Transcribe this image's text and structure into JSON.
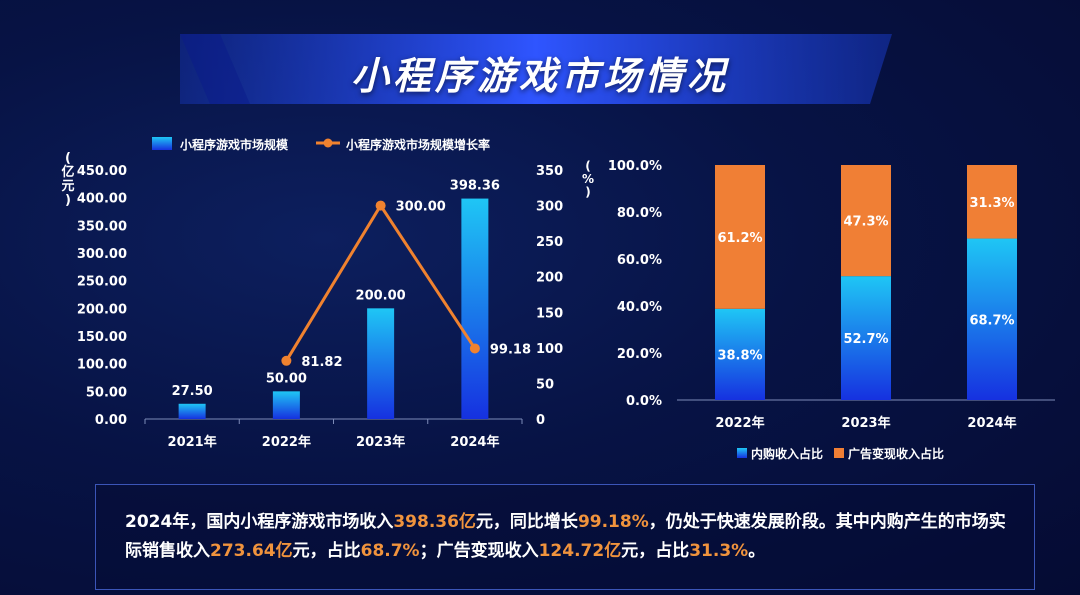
{
  "title": "小程序游戏市场情况",
  "chart_data": [
    {
      "type": "bar",
      "legend": [
        "小程序游戏市场规模",
        "小程序游戏市场规模增长率"
      ],
      "ylabel": "亿元",
      "y2label": "%",
      "categories": [
        "2021年",
        "2022年",
        "2023年",
        "2024年"
      ],
      "ylim": [
        0,
        450
      ],
      "y_ticks": [
        "0.00",
        "50.00",
        "100.00",
        "150.00",
        "200.00",
        "250.00",
        "300.00",
        "350.00",
        "400.00",
        "450.00"
      ],
      "y2lim": [
        0,
        350
      ],
      "y2_ticks": [
        "0",
        "50",
        "100",
        "150",
        "200",
        "250",
        "300",
        "350"
      ],
      "series": [
        {
          "name": "小程序游戏市场规模",
          "kind": "bar",
          "values": [
            27.5,
            50.0,
            200.0,
            398.36
          ],
          "labels": [
            "27.50",
            "50.00",
            "200.00",
            "398.36"
          ]
        },
        {
          "name": "小程序游戏市场规模增长率",
          "kind": "line",
          "axis": "right",
          "values": [
            null,
            81.82,
            300.0,
            99.18
          ],
          "labels": [
            "",
            "81.82",
            "300.00",
            "99.18"
          ]
        }
      ]
    },
    {
      "type": "stacked-bar",
      "categories": [
        "2022年",
        "2023年",
        "2024年"
      ],
      "ylim": [
        0,
        100
      ],
      "y_ticks": [
        "0.0%",
        "20.0%",
        "40.0%",
        "60.0%",
        "80.0%",
        "100.0%"
      ],
      "ylabel": "%",
      "legend": [
        "内购收入占比",
        "广告变现收入占比"
      ],
      "series": [
        {
          "name": "内购收入占比",
          "values": [
            38.8,
            52.7,
            68.7
          ],
          "labels": [
            "38.8%",
            "52.7%",
            "68.7%"
          ]
        },
        {
          "name": "广告变现收入占比",
          "values": [
            61.2,
            47.3,
            31.3
          ],
          "labels": [
            "61.2%",
            "47.3%",
            "31.3%"
          ]
        }
      ]
    }
  ],
  "summary": {
    "t1": "2024年，国内小程序游戏市场收入",
    "h1": "398.36亿",
    "t2": "元，同比增长",
    "h2": "99.18%",
    "t3": "，仍处于快速发展阶段。其中内购产生的市场实际销售收入",
    "h3": "273.64亿",
    "t4": "元，占比",
    "h4": "68.7%",
    "t5": "；广告变现收入",
    "h5": "124.72亿",
    "t6": "元，占比",
    "h6": "31.3%",
    "t7": "。"
  },
  "colors": {
    "bar_top": "#1fc6f5",
    "bar_bottom": "#1631e0",
    "line": "#f0822f",
    "ad": "#f07f35",
    "accent": "#f0933d"
  }
}
